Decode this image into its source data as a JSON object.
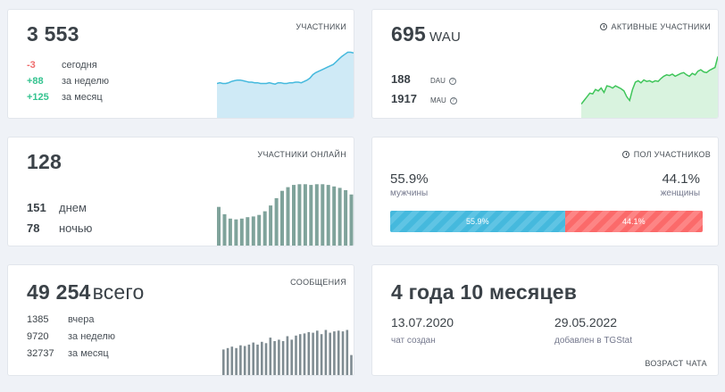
{
  "members": {
    "total": "3 553",
    "title": "УЧАСТНИКИ",
    "rows": [
      {
        "value": "-3",
        "label": "сегодня"
      },
      {
        "value": "+88",
        "label": "за неделю"
      },
      {
        "value": "+125",
        "label": "за месяц"
      }
    ],
    "colors": {
      "line": "#45b9dd",
      "fill": "#cfeaf6"
    },
    "trend": [
      52,
      53,
      52,
      52,
      53,
      55,
      56,
      57,
      57,
      56,
      55,
      54,
      54,
      53,
      53,
      52,
      52,
      52,
      53,
      52,
      51,
      53,
      53,
      52,
      52,
      53,
      53,
      54,
      54,
      53,
      55,
      57,
      60,
      65,
      68,
      70,
      72,
      74,
      76,
      78,
      80,
      84,
      88,
      92,
      95,
      98,
      98,
      97
    ]
  },
  "active": {
    "value": "695",
    "suffix": "WAU",
    "title": "АКТИВНЫЕ УЧАСТНИКИ",
    "rows": [
      {
        "value": "188",
        "label": "DAU"
      },
      {
        "value": "1917",
        "label": "MAU"
      }
    ],
    "colors": {
      "line": "#3fc55a",
      "fill": "#d9f3df"
    },
    "trend": [
      20,
      25,
      30,
      35,
      34,
      40,
      38,
      42,
      36,
      45,
      44,
      42,
      45,
      43,
      41,
      38,
      30,
      25,
      40,
      50,
      52,
      49,
      53,
      51,
      52,
      50,
      52,
      51,
      55,
      58,
      60,
      59,
      61,
      58,
      60,
      62,
      63,
      60,
      58,
      62,
      60,
      65,
      67,
      64,
      63,
      66,
      68,
      70,
      85
    ]
  },
  "online": {
    "value": "128",
    "title": "УЧАСТНИКИ ОНЛАЙН",
    "rows": [
      {
        "value": "151",
        "label": "днем"
      },
      {
        "value": "78",
        "label": "ночью"
      }
    ],
    "colors": {
      "bar": "#7fa39b"
    },
    "bars": [
      54,
      44,
      38,
      37,
      38,
      40,
      41,
      43,
      48,
      56,
      66,
      76,
      81,
      84,
      85,
      85,
      84,
      85,
      85,
      84,
      82,
      80,
      77,
      71
    ]
  },
  "gender": {
    "title": "ПОЛ УЧАСТНИКОВ",
    "male": {
      "pct": "55.9%",
      "label": "мужчины",
      "share": 55.9
    },
    "female": {
      "pct": "44.1%",
      "label": "женщины",
      "share": 44.1
    },
    "colors": {
      "male": "#45b9dd",
      "female": "#fb6a6a"
    }
  },
  "messages": {
    "total": "49 254",
    "word": "всего",
    "title": "СООБЩЕНИЯ",
    "rows": [
      {
        "value": "1385",
        "label": "вчера"
      },
      {
        "value": "9720",
        "label": "за неделю"
      },
      {
        "value": "32737",
        "label": "за месяц"
      }
    ],
    "colors": {
      "bar": "#7f8c92"
    },
    "bars": [
      38,
      40,
      42,
      40,
      44,
      43,
      45,
      48,
      45,
      49,
      47,
      55,
      50,
      52,
      50,
      57,
      52,
      58,
      60,
      61,
      63,
      62,
      65,
      60,
      66,
      62,
      64,
      65,
      64,
      66,
      30
    ]
  },
  "age": {
    "title": "4 года 10 месяцев",
    "created": {
      "date": "13.07.2020",
      "label": "чат создан"
    },
    "added": {
      "date": "29.05.2022",
      "label": "добавлен в TGStat"
    },
    "footer": "ВОЗРАСТ ЧАТА"
  }
}
